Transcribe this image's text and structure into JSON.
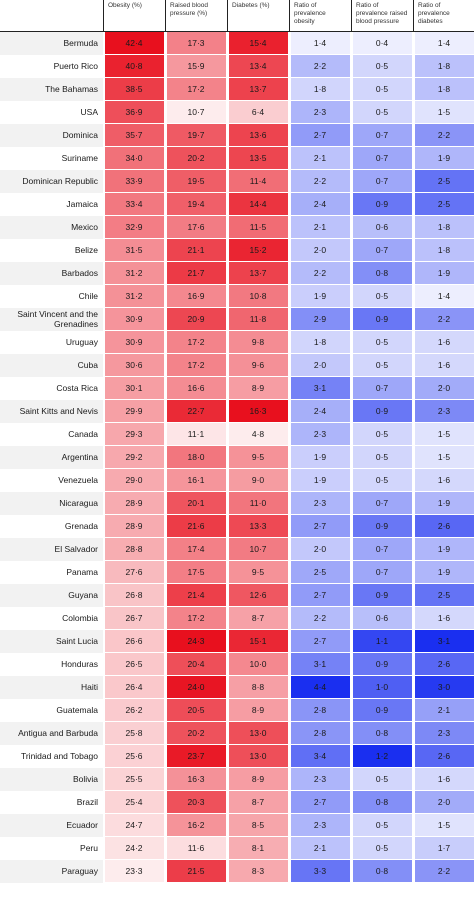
{
  "chart_data": {
    "type": "heatmap",
    "columns": [
      "Obesity (%)",
      "Raised blood pressure (%)",
      "Diabetes (%)",
      "Ratio of prevalence obesity",
      "Ratio of prevalence raised blood pressure",
      "Ratio of prevalence diabetes"
    ],
    "rows": [
      {
        "country": "Bermuda",
        "values": [
          42.4,
          17.3,
          15.4,
          1.4,
          0.4,
          1.4
        ]
      },
      {
        "country": "Puerto Rico",
        "values": [
          40.8,
          15.9,
          13.4,
          2.2,
          0.5,
          1.8
        ]
      },
      {
        "country": "The Bahamas",
        "values": [
          38.5,
          17.2,
          13.7,
          1.8,
          0.5,
          1.8
        ]
      },
      {
        "country": "USA",
        "values": [
          36.9,
          10.7,
          6.4,
          2.3,
          0.5,
          1.5
        ]
      },
      {
        "country": "Dominica",
        "values": [
          35.7,
          19.7,
          13.6,
          2.7,
          0.7,
          2.2
        ]
      },
      {
        "country": "Suriname",
        "values": [
          34.0,
          20.2,
          13.5,
          2.1,
          0.7,
          1.9
        ]
      },
      {
        "country": "Dominican Republic",
        "values": [
          33.9,
          19.5,
          11.4,
          2.2,
          0.7,
          2.5
        ]
      },
      {
        "country": "Jamaica",
        "values": [
          33.4,
          19.4,
          14.4,
          2.4,
          0.9,
          2.5
        ]
      },
      {
        "country": "Mexico",
        "values": [
          32.9,
          17.6,
          11.5,
          2.1,
          0.6,
          1.8
        ]
      },
      {
        "country": "Belize",
        "values": [
          31.5,
          21.1,
          15.2,
          2.0,
          0.7,
          1.8
        ]
      },
      {
        "country": "Barbados",
        "values": [
          31.2,
          21.7,
          13.7,
          2.2,
          0.8,
          1.9
        ]
      },
      {
        "country": "Chile",
        "values": [
          31.2,
          16.9,
          10.8,
          1.9,
          0.5,
          1.4
        ]
      },
      {
        "country": "Saint Vincent and the Grenadines",
        "values": [
          30.9,
          20.9,
          11.8,
          2.9,
          0.9,
          2.2
        ]
      },
      {
        "country": "Uruguay",
        "values": [
          30.9,
          17.2,
          9.8,
          1.8,
          0.5,
          1.6
        ]
      },
      {
        "country": "Cuba",
        "values": [
          30.6,
          17.2,
          9.6,
          2.0,
          0.5,
          1.6
        ]
      },
      {
        "country": "Costa Rica",
        "values": [
          30.1,
          16.6,
          8.9,
          3.1,
          0.7,
          2.0
        ]
      },
      {
        "country": "Saint Kitts and Nevis",
        "values": [
          29.9,
          22.7,
          16.3,
          2.4,
          0.9,
          2.3
        ]
      },
      {
        "country": "Canada",
        "values": [
          29.3,
          11.1,
          4.8,
          2.3,
          0.5,
          1.5
        ]
      },
      {
        "country": "Argentina",
        "values": [
          29.2,
          18.0,
          9.5,
          1.9,
          0.5,
          1.5
        ]
      },
      {
        "country": "Venezuela",
        "values": [
          29.0,
          16.1,
          9.0,
          1.9,
          0.5,
          1.6
        ]
      },
      {
        "country": "Nicaragua",
        "values": [
          28.9,
          20.1,
          11.0,
          2.3,
          0.7,
          1.9
        ]
      },
      {
        "country": "Grenada",
        "values": [
          28.9,
          21.6,
          13.3,
          2.7,
          0.9,
          2.6
        ]
      },
      {
        "country": "El Salvador",
        "values": [
          28.8,
          17.4,
          10.7,
          2.0,
          0.7,
          1.9
        ]
      },
      {
        "country": "Panama",
        "values": [
          27.6,
          17.5,
          9.5,
          2.5,
          0.7,
          1.9
        ]
      },
      {
        "country": "Guyana",
        "values": [
          26.8,
          21.4,
          12.6,
          2.7,
          0.9,
          2.5
        ]
      },
      {
        "country": "Colombia",
        "values": [
          26.7,
          17.2,
          8.7,
          2.2,
          0.6,
          1.6
        ]
      },
      {
        "country": "Saint Lucia",
        "values": [
          26.6,
          24.3,
          15.1,
          2.7,
          1.1,
          3.1
        ]
      },
      {
        "country": "Honduras",
        "values": [
          26.5,
          20.4,
          10.0,
          3.1,
          0.9,
          2.6
        ]
      },
      {
        "country": "Haiti",
        "values": [
          26.4,
          24.0,
          8.8,
          4.4,
          1.0,
          3.0
        ]
      },
      {
        "country": "Guatemala",
        "values": [
          26.2,
          20.5,
          8.9,
          2.8,
          0.9,
          2.1
        ]
      },
      {
        "country": "Antigua and Barbuda",
        "values": [
          25.8,
          20.2,
          13.0,
          2.8,
          0.8,
          2.3
        ]
      },
      {
        "country": "Trinidad and Tobago",
        "values": [
          25.6,
          23.7,
          13.0,
          3.4,
          1.2,
          2.6
        ]
      },
      {
        "country": "Bolivia",
        "values": [
          25.5,
          16.3,
          8.9,
          2.3,
          0.5,
          1.6
        ]
      },
      {
        "country": "Brazil",
        "values": [
          25.4,
          20.3,
          8.7,
          2.7,
          0.8,
          2.0
        ]
      },
      {
        "country": "Ecuador",
        "values": [
          24.7,
          16.2,
          8.5,
          2.3,
          0.5,
          1.5
        ]
      },
      {
        "country": "Peru",
        "values": [
          24.2,
          11.6,
          8.1,
          2.1,
          0.5,
          1.7
        ]
      },
      {
        "country": "Paraguay",
        "values": [
          23.3,
          21.5,
          8.3,
          3.3,
          0.8,
          2.2
        ]
      }
    ],
    "colors": {
      "high_red": "#e8101e",
      "low_red": "#ffffff",
      "high_blue": "#1a2ff0",
      "low_blue": "#ffffff"
    }
  }
}
